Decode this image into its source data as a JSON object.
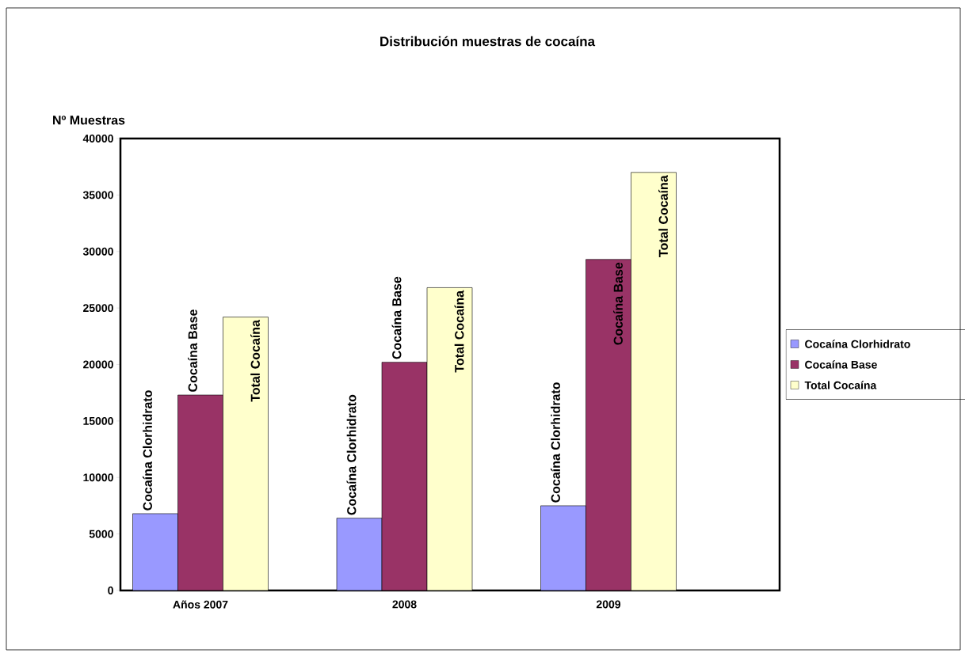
{
  "chart_data": {
    "type": "bar",
    "title": "Distribución muestras de cocaína",
    "ylabel": "Nº Muestras",
    "categories": [
      "Años 2007",
      "2008",
      "2009"
    ],
    "series": [
      {
        "name": "Cocaína Clorhidrato",
        "color": "#9999ff",
        "values": [
          6800,
          6400,
          7500
        ]
      },
      {
        "name": "Cocaína Base",
        "color": "#993366",
        "values": [
          17300,
          20200,
          29300
        ]
      },
      {
        "name": "Total Cocaína",
        "color": "#ffffcc",
        "values": [
          24200,
          26800,
          37000
        ]
      }
    ],
    "ylim": [
      0,
      40000
    ],
    "yticks": [
      0,
      5000,
      10000,
      15000,
      20000,
      25000,
      30000,
      35000,
      40000
    ],
    "grid": false,
    "legend": "right"
  }
}
